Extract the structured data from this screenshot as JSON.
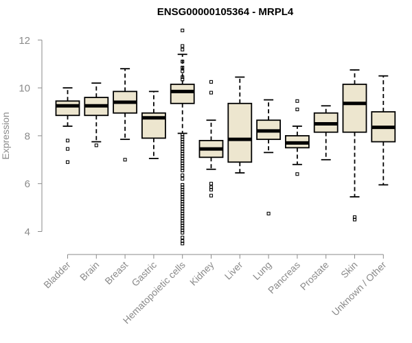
{
  "chart_data": {
    "type": "box",
    "title": "ENSG00000105364 - MRPL4",
    "xlabel": "",
    "ylabel": "Expression",
    "ylim": [
      3.4,
      12.5
    ],
    "yticks": [
      4,
      6,
      8,
      10,
      12
    ],
    "box_color": "#ede6cf",
    "categories": [
      "Bladder",
      "Brain",
      "Breast",
      "Gastric",
      "Hematopoietic cells",
      "Kidney",
      "Liver",
      "Lung",
      "Pancreas",
      "Prostate",
      "Skin",
      "Unknown / Other"
    ],
    "boxes": [
      {
        "name": "Bladder",
        "whisker_low": 8.4,
        "q1": 8.85,
        "median": 9.25,
        "q3": 9.45,
        "whisker_high": 10.0,
        "outliers": [
          7.8,
          7.45,
          6.9
        ]
      },
      {
        "name": "Brain",
        "whisker_low": 7.75,
        "q1": 8.85,
        "median": 9.25,
        "q3": 9.6,
        "whisker_high": 10.2,
        "outliers": [
          7.6
        ]
      },
      {
        "name": "Breast",
        "whisker_low": 7.85,
        "q1": 8.95,
        "median": 9.4,
        "q3": 9.85,
        "whisker_high": 10.8,
        "outliers": [
          7.0
        ]
      },
      {
        "name": "Gastric",
        "whisker_low": 7.05,
        "q1": 7.9,
        "median": 8.75,
        "q3": 8.95,
        "whisker_high": 9.85,
        "outliers": []
      },
      {
        "name": "Hematopoietic cells",
        "whisker_low": 8.1,
        "q1": 9.35,
        "median": 9.85,
        "q3": 10.15,
        "whisker_high": 11.4,
        "outliers": [
          12.4,
          11.75,
          11.6,
          11.1,
          10.85,
          10.7,
          10.45,
          10.35,
          8.05,
          7.95,
          7.85,
          7.75,
          7.65,
          7.55,
          7.45,
          7.35,
          7.25,
          7.15,
          7.05,
          6.95,
          6.85,
          6.75,
          6.65,
          6.55,
          6.35,
          6.2,
          5.95,
          5.85,
          5.75,
          5.65,
          5.55,
          5.45,
          5.35,
          5.25,
          5.15,
          5.05,
          4.95,
          4.85,
          4.75,
          4.65,
          4.55,
          4.45,
          4.35,
          4.25,
          4.15,
          4.05,
          3.95,
          3.75,
          3.6,
          3.5
        ]
      },
      {
        "name": "Kidney",
        "whisker_low": 6.6,
        "q1": 7.1,
        "median": 7.45,
        "q3": 7.8,
        "whisker_high": 8.65,
        "outliers": [
          10.25,
          9.8,
          6.0,
          5.85,
          5.75,
          5.5
        ]
      },
      {
        "name": "Liver",
        "whisker_low": 6.45,
        "q1": 6.9,
        "median": 7.85,
        "q3": 9.35,
        "whisker_high": 10.45,
        "outliers": []
      },
      {
        "name": "Lung",
        "whisker_low": 7.3,
        "q1": 7.85,
        "median": 8.2,
        "q3": 8.65,
        "whisker_high": 9.5,
        "outliers": [
          4.75
        ]
      },
      {
        "name": "Pancreas",
        "whisker_low": 6.8,
        "q1": 7.5,
        "median": 7.7,
        "q3": 8.0,
        "whisker_high": 8.4,
        "outliers": [
          9.45,
          9.1,
          6.4
        ]
      },
      {
        "name": "Prostate",
        "whisker_low": 7.0,
        "q1": 8.15,
        "median": 8.5,
        "q3": 8.95,
        "whisker_high": 9.25,
        "outliers": []
      },
      {
        "name": "Skin",
        "whisker_low": 5.45,
        "q1": 8.15,
        "median": 9.35,
        "q3": 10.15,
        "whisker_high": 10.75,
        "outliers": [
          4.6,
          4.5
        ]
      },
      {
        "name": "Unknown / Other",
        "whisker_low": 5.95,
        "q1": 7.75,
        "median": 8.35,
        "q3": 9.0,
        "whisker_high": 10.5,
        "outliers": []
      }
    ]
  }
}
